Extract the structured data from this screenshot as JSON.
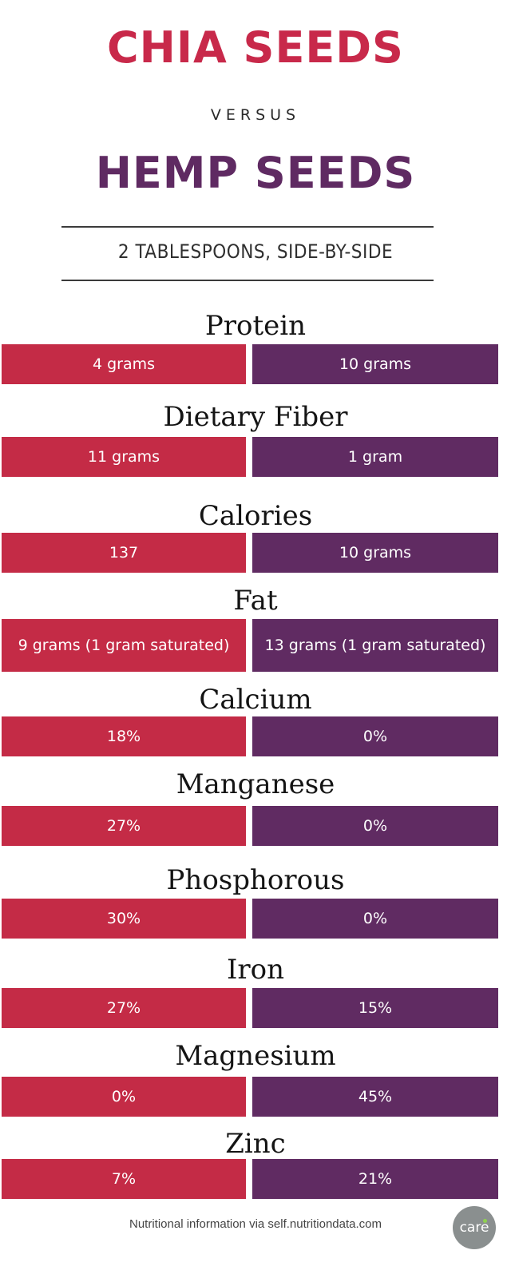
{
  "header": {
    "title_chia": "CHIA SEEDS",
    "versus": "VERSUS",
    "title_hemp": "HEMP SEEDS",
    "subtitle": "2 TABLESPOONS, SIDE-BY-SIDE"
  },
  "colors": {
    "chia": "#c42b46",
    "hemp": "#602b62"
  },
  "nutrients": [
    {
      "label": "Protein",
      "chia": "4 grams",
      "hemp": "10 grams"
    },
    {
      "label": "Dietary Fiber",
      "chia": "11 grams",
      "hemp": "1 gram"
    },
    {
      "label": "Calories",
      "chia": "137",
      "hemp": "10 grams"
    },
    {
      "label": "Fat",
      "chia": "9 grams (1 gram saturated)",
      "hemp": "13 grams (1 gram saturated)"
    },
    {
      "label": "Calcium",
      "chia": "18%",
      "hemp": "0%"
    },
    {
      "label": "Manganese",
      "chia": "27%",
      "hemp": "0%"
    },
    {
      "label": "Phosphorous",
      "chia": "30%",
      "hemp": "0%"
    },
    {
      "label": "Iron",
      "chia": "27%",
      "hemp": "15%"
    },
    {
      "label": "Magnesium",
      "chia": "0%",
      "hemp": "45%"
    },
    {
      "label": "Zinc",
      "chia": "7%",
      "hemp": "21%"
    }
  ],
  "footer": {
    "source": "Nutritional information via self.nutritiondata.com",
    "logo_text": "care",
    "logo_icon": "care2-logo-icon"
  }
}
